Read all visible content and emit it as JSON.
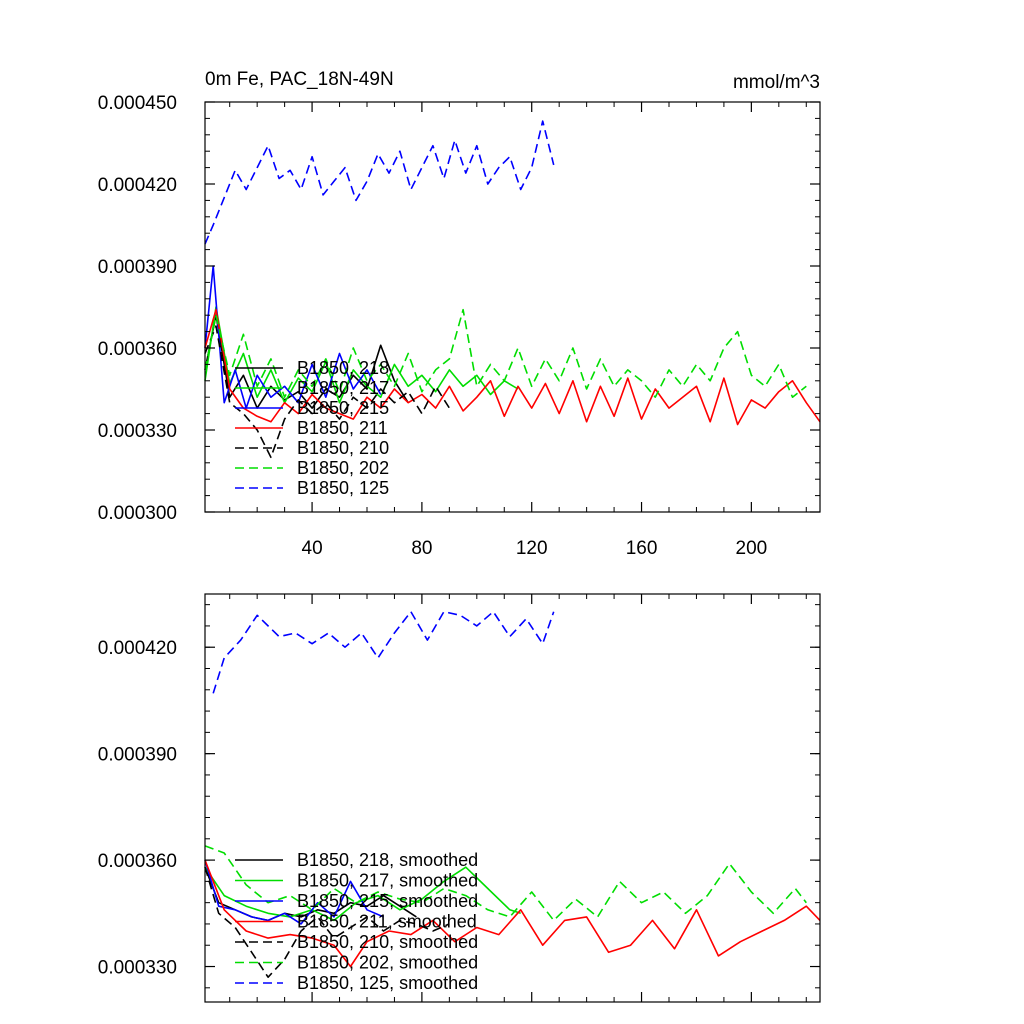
{
  "chart_data": [
    {
      "type": "line",
      "title_left": "0m Fe, PAC_18N-49N",
      "title_right": "mmol/m^3",
      "xlim": [
        1,
        225
      ],
      "ylim": [
        0.0003,
        0.00045
      ],
      "xticks": [
        40,
        80,
        120,
        160,
        200
      ],
      "xtick_labels": [
        "40",
        "80",
        "120",
        "160",
        "200"
      ],
      "yticks": [
        0.0003,
        0.00033,
        0.00036,
        0.00039,
        0.00042,
        0.00045
      ],
      "ytick_labels": [
        "0.000300",
        "0.000330",
        "0.000360",
        "0.000390",
        "0.000420",
        "0.000450"
      ],
      "legend_position": "lower-left",
      "series": [
        {
          "name": "B1850, 218",
          "color": "#000000",
          "dash": "solid",
          "x": [
            1,
            5,
            10,
            15,
            20,
            25,
            30,
            35,
            40,
            45,
            50,
            55,
            60,
            65,
            70,
            75
          ],
          "values": [
            0.000352,
            0.000372,
            0.000342,
            0.00035,
            0.000338,
            0.000346,
            0.000341,
            0.000344,
            0.000338,
            0.000345,
            0.000342,
            0.00035,
            0.000345,
            0.000361,
            0.000348,
            0.00034
          ]
        },
        {
          "name": "B1850, 217",
          "color": "#00dd00",
          "dash": "solid",
          "x": [
            1,
            5,
            10,
            15,
            20,
            25,
            30,
            35,
            40,
            45,
            50,
            55,
            60,
            65,
            70,
            75,
            80,
            85,
            90,
            95,
            100,
            105,
            110,
            115
          ],
          "values": [
            0.000348,
            0.000375,
            0.000347,
            0.000358,
            0.000342,
            0.000352,
            0.00034,
            0.000349,
            0.000344,
            0.000355,
            0.00034,
            0.000352,
            0.000346,
            0.000342,
            0.000354,
            0.000346,
            0.00035,
            0.000344,
            0.000352,
            0.000346,
            0.00035,
            0.000343,
            0.000348,
            0.000345
          ]
        },
        {
          "name": "B1850, 215",
          "color": "#0000ff",
          "dash": "solid",
          "x": [
            1,
            4,
            8,
            12,
            16,
            20,
            25,
            30,
            35,
            40,
            45,
            50,
            55,
            60,
            65
          ],
          "values": [
            0.00036,
            0.00039,
            0.00034,
            0.000352,
            0.000338,
            0.00035,
            0.000342,
            0.000346,
            0.00034,
            0.000354,
            0.000342,
            0.000358,
            0.000345,
            0.000352,
            0.000343
          ]
        },
        {
          "name": "B1850, 211",
          "color": "#ff0000",
          "dash": "solid",
          "x": [
            1,
            5,
            10,
            15,
            20,
            25,
            30,
            35,
            40,
            45,
            50,
            55,
            60,
            65,
            70,
            75,
            80,
            85,
            90,
            95,
            100,
            105,
            110,
            115,
            120,
            125,
            130,
            135,
            140,
            145,
            150,
            155,
            160,
            165,
            170,
            175,
            180,
            185,
            190,
            195,
            200,
            205,
            210,
            215,
            220,
            225
          ],
          "values": [
            0.00036,
            0.000374,
            0.000345,
            0.000338,
            0.000335,
            0.000333,
            0.00034,
            0.000336,
            0.000343,
            0.000338,
            0.000336,
            0.000334,
            0.000342,
            0.000338,
            0.000345,
            0.00034,
            0.000343,
            0.000338,
            0.000346,
            0.000337,
            0.000342,
            0.000348,
            0.000335,
            0.000346,
            0.000338,
            0.000347,
            0.000336,
            0.000348,
            0.000333,
            0.000346,
            0.000335,
            0.000349,
            0.000334,
            0.000345,
            0.000338,
            0.000342,
            0.000346,
            0.000333,
            0.000349,
            0.000332,
            0.000341,
            0.000338,
            0.000344,
            0.000348,
            0.00034,
            0.000333
          ]
        },
        {
          "name": "B1850, 210",
          "color": "#000000",
          "dash": "dashed",
          "x": [
            1,
            5,
            10,
            15,
            20,
            25,
            30,
            35,
            40,
            45,
            50,
            55,
            60,
            65,
            70,
            75,
            80,
            85,
            90
          ],
          "values": [
            0.000358,
            0.000368,
            0.00034,
            0.000336,
            0.00033,
            0.00032,
            0.000334,
            0.000341,
            0.000336,
            0.00034,
            0.000334,
            0.000342,
            0.000338,
            0.000345,
            0.00034,
            0.000344,
            0.000336,
            0.000346,
            0.000338
          ]
        },
        {
          "name": "B1850, 202",
          "color": "#00dd00",
          "dash": "dashed",
          "x": [
            1,
            5,
            10,
            15,
            20,
            25,
            30,
            35,
            40,
            45,
            50,
            55,
            60,
            65,
            70,
            75,
            80,
            85,
            90,
            95,
            100,
            105,
            110,
            115,
            120,
            125,
            130,
            135,
            140,
            145,
            150,
            155,
            160,
            165,
            170,
            175,
            180,
            185,
            190,
            195,
            200,
            205,
            210,
            215,
            220
          ],
          "values": [
            0.000352,
            0.000372,
            0.00035,
            0.000365,
            0.000346,
            0.000356,
            0.000342,
            0.000352,
            0.000346,
            0.000356,
            0.000344,
            0.00036,
            0.000348,
            0.000354,
            0.000346,
            0.000358,
            0.000344,
            0.000352,
            0.000356,
            0.000374,
            0.000346,
            0.000354,
            0.000348,
            0.00036,
            0.000346,
            0.000356,
            0.000348,
            0.00036,
            0.000345,
            0.000356,
            0.000346,
            0.000352,
            0.000348,
            0.000342,
            0.000352,
            0.000346,
            0.000354,
            0.000348,
            0.00036,
            0.000366,
            0.00035,
            0.000346,
            0.000354,
            0.000342,
            0.000346
          ]
        },
        {
          "name": "B1850, 125",
          "color": "#0000ff",
          "dash": "dashed",
          "x": [
            1,
            4,
            8,
            12,
            16,
            20,
            24,
            28,
            32,
            36,
            40,
            44,
            48,
            52,
            56,
            60,
            64,
            68,
            72,
            76,
            80,
            84,
            88,
            92,
            96,
            100,
            104,
            108,
            112,
            116,
            120,
            124,
            128
          ],
          "values": [
            0.000398,
            0.000405,
            0.000415,
            0.000425,
            0.000418,
            0.000426,
            0.000434,
            0.000422,
            0.000425,
            0.000418,
            0.00043,
            0.000416,
            0.000421,
            0.000426,
            0.000414,
            0.000421,
            0.000431,
            0.000424,
            0.000432,
            0.000418,
            0.000426,
            0.000434,
            0.000422,
            0.000436,
            0.000424,
            0.000434,
            0.00042,
            0.000426,
            0.00043,
            0.000418,
            0.000426,
            0.000443,
            0.000427
          ]
        }
      ]
    },
    {
      "type": "line",
      "xlim": [
        1,
        225
      ],
      "ylim": [
        0.00032,
        0.000435
      ],
      "xticks": [
        40,
        80,
        120,
        160,
        200
      ],
      "yticks": [
        0.00033,
        0.00036,
        0.00039,
        0.00042
      ],
      "ytick_labels": [
        "0.000330",
        "0.000360",
        "0.000390",
        "0.000420"
      ],
      "legend_position": "lower-left",
      "series": [
        {
          "name": "B1850, 218, smoothed",
          "color": "#000000",
          "dash": "solid",
          "x": [
            1,
            6,
            12,
            18,
            24,
            30,
            36,
            42,
            48,
            54,
            60,
            66,
            72,
            78
          ],
          "values": [
            0.000358,
            0.000348,
            0.000346,
            0.000344,
            0.000343,
            0.000345,
            0.000344,
            0.000346,
            0.000345,
            0.000348,
            0.000347,
            0.00035,
            0.000347,
            0.000344
          ]
        },
        {
          "name": "B1850, 217, smoothed",
          "color": "#00dd00",
          "dash": "solid",
          "x": [
            1,
            8,
            16,
            24,
            32,
            40,
            48,
            56,
            64,
            72,
            80,
            88,
            96,
            104,
            112,
            116
          ],
          "values": [
            0.000358,
            0.00035,
            0.000347,
            0.000345,
            0.000344,
            0.000346,
            0.000343,
            0.000348,
            0.00035,
            0.000346,
            0.000349,
            0.000354,
            0.000358,
            0.000352,
            0.000346,
            0.000345
          ]
        },
        {
          "name": "B1850, 215, smoothed",
          "color": "#0000ff",
          "dash": "solid",
          "x": [
            1,
            6,
            12,
            18,
            24,
            30,
            36,
            42,
            48,
            54,
            60,
            66
          ],
          "values": [
            0.00036,
            0.000347,
            0.000346,
            0.000344,
            0.000343,
            0.000345,
            0.000342,
            0.000348,
            0.000344,
            0.000354,
            0.000346,
            0.000344
          ]
        },
        {
          "name": "B1850, 211, smoothed",
          "color": "#ff0000",
          "dash": "solid",
          "x": [
            1,
            8,
            16,
            24,
            32,
            40,
            48,
            54,
            60,
            68,
            76,
            84,
            92,
            100,
            108,
            116,
            124,
            132,
            140,
            148,
            156,
            164,
            172,
            180,
            188,
            196,
            204,
            212,
            220,
            225
          ],
          "values": [
            0.00036,
            0.000346,
            0.00034,
            0.000338,
            0.000339,
            0.000338,
            0.000336,
            0.00033,
            0.000337,
            0.00034,
            0.000339,
            0.000343,
            0.000337,
            0.000341,
            0.000339,
            0.000346,
            0.000336,
            0.000343,
            0.000344,
            0.000334,
            0.000336,
            0.000343,
            0.000335,
            0.000346,
            0.000333,
            0.000337,
            0.00034,
            0.000343,
            0.000347,
            0.000343
          ]
        },
        {
          "name": "B1850, 210, smoothed",
          "color": "#000000",
          "dash": "dashed",
          "x": [
            1,
            6,
            12,
            18,
            24,
            30,
            36,
            42,
            48,
            54,
            60,
            66,
            72,
            78,
            84,
            90
          ],
          "values": [
            0.000358,
            0.000345,
            0.000341,
            0.000334,
            0.000327,
            0.000332,
            0.00034,
            0.000344,
            0.000338,
            0.000341,
            0.000344,
            0.00034,
            0.000343,
            0.000342,
            0.00034,
            0.000342
          ]
        },
        {
          "name": "B1850, 202, smoothed",
          "color": "#00dd00",
          "dash": "dashed",
          "x": [
            1,
            8,
            16,
            24,
            32,
            40,
            48,
            56,
            64,
            72,
            80,
            88,
            96,
            104,
            112,
            120,
            128,
            136,
            144,
            152,
            160,
            168,
            176,
            184,
            192,
            200,
            208,
            216,
            220
          ],
          "values": [
            0.000364,
            0.000362,
            0.000353,
            0.000348,
            0.00035,
            0.000346,
            0.000352,
            0.000348,
            0.000351,
            0.000349,
            0.000348,
            0.000352,
            0.00035,
            0.000346,
            0.000344,
            0.000351,
            0.000343,
            0.000349,
            0.000344,
            0.000354,
            0.000348,
            0.000351,
            0.000345,
            0.00035,
            0.000359,
            0.000351,
            0.000345,
            0.000352,
            0.000348
          ]
        },
        {
          "name": "B1850, 125, smoothed",
          "color": "#0000ff",
          "dash": "dashed",
          "x": [
            4,
            8,
            14,
            20,
            28,
            34,
            40,
            46,
            52,
            58,
            64,
            70,
            76,
            82,
            88,
            94,
            100,
            106,
            112,
            118,
            124,
            128
          ],
          "values": [
            0.000407,
            0.000417,
            0.000422,
            0.000429,
            0.000423,
            0.000424,
            0.000421,
            0.000424,
            0.00042,
            0.000424,
            0.000417,
            0.000424,
            0.00043,
            0.000422,
            0.00043,
            0.000429,
            0.000426,
            0.00043,
            0.000423,
            0.000428,
            0.000421,
            0.00043
          ]
        }
      ]
    }
  ]
}
